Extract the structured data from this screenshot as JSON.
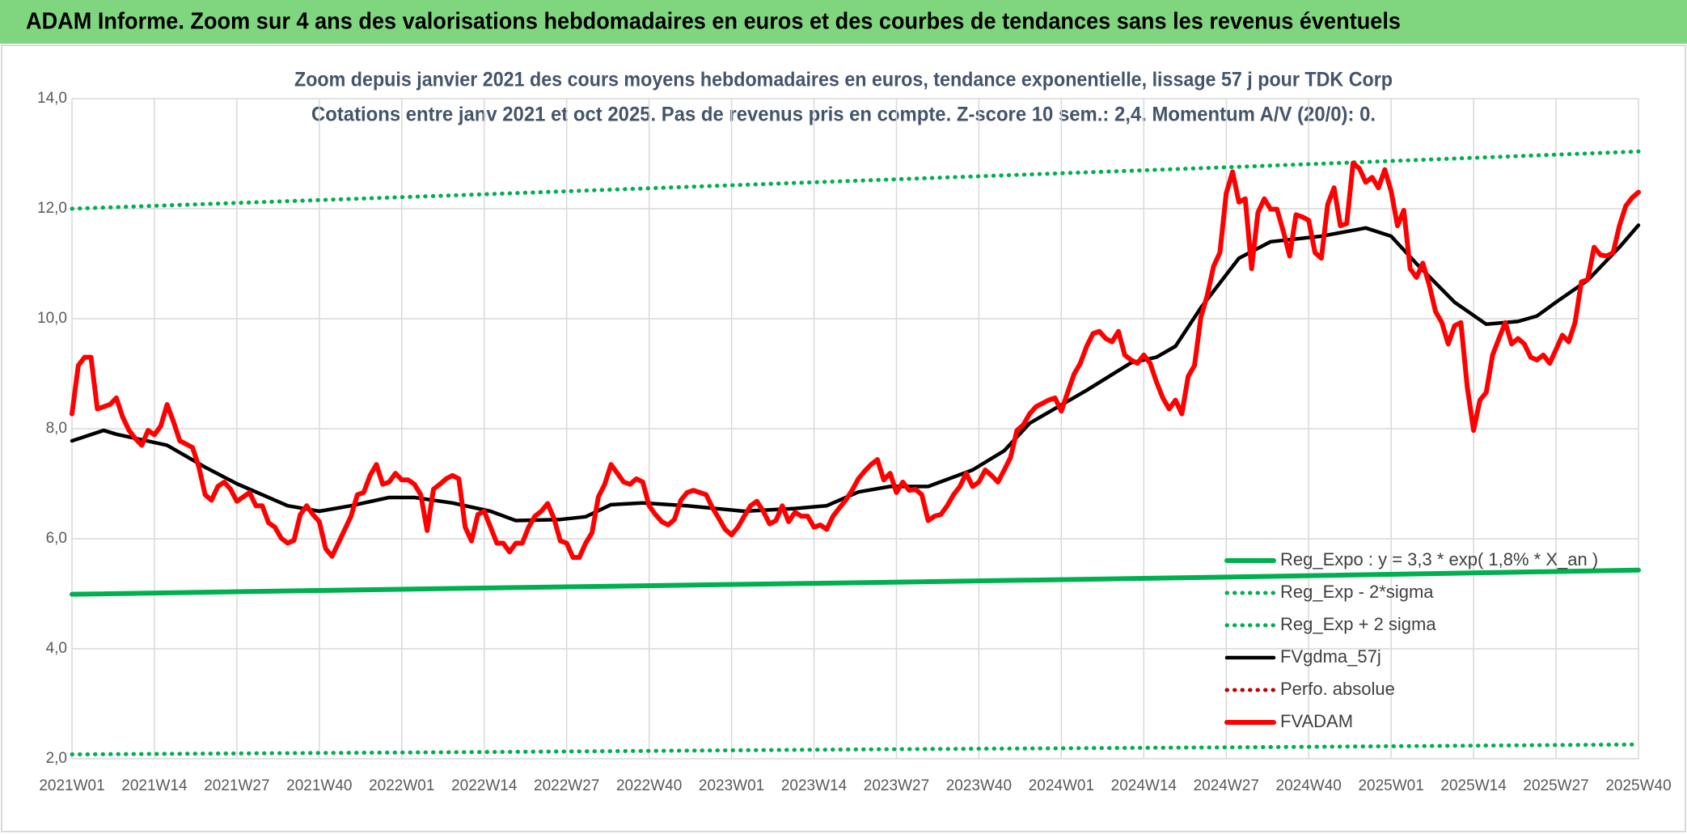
{
  "banner": "ADAM Informe. Zoom sur 4 ans des valorisations hebdomadaires en euros et des courbes de tendances sans les revenus éventuels",
  "chart_data": {
    "type": "line",
    "subtitles": [
      "Zoom depuis janvier 2021 des cours moyens hebdomadaires en euros, tendance exponentielle, lissage 57 j pour TDK Corp",
      "Cotations entre janv 2021 et oct 2025. Pas de revenus pris en compte. Z-score 10 sem.: 2,4. Momentum A/V (20/0): 0."
    ],
    "xlim": [
      0,
      247
    ],
    "xticks": [
      {
        "value": 0,
        "label": "2021W01"
      },
      {
        "value": 13,
        "label": "2021W14"
      },
      {
        "value": 26,
        "label": "2021W27"
      },
      {
        "value": 39,
        "label": "2021W40"
      },
      {
        "value": 52,
        "label": "2022W01"
      },
      {
        "value": 65,
        "label": "2022W14"
      },
      {
        "value": 78,
        "label": "2022W27"
      },
      {
        "value": 91,
        "label": "2022W40"
      },
      {
        "value": 104,
        "label": "2023W01"
      },
      {
        "value": 117,
        "label": "2023W14"
      },
      {
        "value": 130,
        "label": "2023W27"
      },
      {
        "value": 143,
        "label": "2023W40"
      },
      {
        "value": 156,
        "label": "2024W01"
      },
      {
        "value": 169,
        "label": "2024W14"
      },
      {
        "value": 182,
        "label": "2024W27"
      },
      {
        "value": 195,
        "label": "2024W40"
      },
      {
        "value": 208,
        "label": "2025W01"
      },
      {
        "value": 221,
        "label": "2025W14"
      },
      {
        "value": 234,
        "label": "2025W27"
      },
      {
        "value": 247,
        "label": "2025W40"
      }
    ],
    "ylim": [
      2,
      14
    ],
    "yticks": [
      {
        "value": 2,
        "label": "2,0"
      },
      {
        "value": 4,
        "label": "4,0"
      },
      {
        "value": 6,
        "label": "6,0"
      },
      {
        "value": 8,
        "label": "8,0"
      },
      {
        "value": 10,
        "label": "10,0"
      },
      {
        "value": 12,
        "label": "12,0"
      },
      {
        "value": 14,
        "label": "14,0"
      }
    ],
    "grid": true,
    "legend": "bottom-right",
    "series": [
      {
        "name": "Reg_Expo : y = 3,3 * exp( 1,8% *  X_an )",
        "color": "#00b050",
        "style": "solid",
        "x": [
          0,
          62,
          124,
          186,
          247
        ],
        "values": [
          4.99,
          5.1,
          5.2,
          5.31,
          5.43
        ]
      },
      {
        "name": "Reg_Exp - 2*sigma",
        "color": "#00b050",
        "style": "dotted",
        "x": [
          0,
          62,
          124,
          186,
          247
        ],
        "values": [
          2.08,
          2.12,
          2.17,
          2.21,
          2.26
        ]
      },
      {
        "name": "Reg_Exp + 2 sigma",
        "color": "#00b050",
        "style": "dotted",
        "x": [
          0,
          62,
          124,
          186,
          247
        ],
        "values": [
          12.0,
          12.25,
          12.51,
          12.77,
          13.04
        ]
      },
      {
        "name": "FVgdma_57j",
        "color": "#000000",
        "style": "solid",
        "x": [
          0,
          5,
          7,
          15,
          21,
          26,
          30,
          34,
          39,
          44,
          50,
          54,
          60,
          66,
          70,
          77,
          81,
          85,
          90,
          97,
          106,
          114,
          119,
          124,
          129,
          135,
          142,
          147,
          151,
          160,
          167,
          171,
          174,
          178,
          184,
          189,
          197,
          204,
          208,
          212,
          218,
          223,
          228,
          231,
          234,
          239,
          244,
          247
        ],
        "values": [
          7.78,
          7.97,
          7.9,
          7.7,
          7.3,
          7.0,
          6.8,
          6.6,
          6.5,
          6.6,
          6.75,
          6.75,
          6.65,
          6.5,
          6.33,
          6.35,
          6.4,
          6.62,
          6.65,
          6.6,
          6.5,
          6.55,
          6.6,
          6.85,
          6.95,
          6.95,
          7.25,
          7.6,
          8.1,
          8.7,
          9.2,
          9.3,
          9.5,
          10.2,
          11.1,
          11.4,
          11.5,
          11.65,
          11.5,
          11.0,
          10.3,
          9.9,
          9.95,
          10.05,
          10.3,
          10.7,
          11.3,
          11.7
        ]
      },
      {
        "name": "Perfo. absolue",
        "color": "#c00000",
        "style": "dotted",
        "x": [],
        "values": []
      },
      {
        "name": "FVADAM",
        "color": "#ff0000",
        "style": "solid",
        "x": [
          0,
          1,
          2,
          3,
          4,
          6,
          7,
          8,
          9,
          10,
          11,
          12,
          13,
          14,
          15,
          16,
          17,
          19,
          20,
          21,
          22,
          23,
          24,
          25,
          26,
          27,
          28,
          29,
          30,
          31,
          32,
          33,
          34,
          35,
          36,
          37,
          38,
          39,
          40,
          41,
          42,
          44,
          45,
          46,
          47,
          48,
          49,
          50,
          51,
          52,
          53,
          54,
          55,
          56,
          57,
          58,
          59,
          60,
          61,
          62,
          63,
          64,
          65,
          66,
          67,
          68,
          69,
          70,
          71,
          72,
          73,
          74,
          75,
          76,
          77,
          78,
          79,
          80,
          81,
          82,
          83,
          84,
          85,
          86,
          87,
          88,
          89,
          90,
          91,
          92,
          93,
          94,
          95,
          96,
          97,
          98,
          99,
          100,
          101,
          102,
          103,
          104,
          105,
          106,
          107,
          108,
          109,
          110,
          111,
          112,
          113,
          114,
          115,
          116,
          117,
          118,
          119,
          120,
          121,
          122,
          123,
          124,
          125,
          126,
          127,
          128,
          129,
          130,
          131,
          132,
          133,
          134,
          135,
          136,
          137,
          138,
          139,
          140,
          141,
          142,
          143,
          144,
          145,
          146,
          147,
          148,
          149,
          150,
          151,
          152,
          153,
          154,
          155,
          156,
          157,
          158,
          159,
          160,
          161,
          162,
          163,
          164,
          165,
          166,
          167,
          168,
          169,
          170,
          171,
          172,
          173,
          174,
          175,
          176,
          177,
          178,
          179,
          180,
          181,
          182,
          183,
          184,
          185,
          186,
          187,
          188,
          189,
          190,
          191,
          192,
          193,
          194,
          195,
          196,
          197,
          198,
          199,
          200,
          201,
          202,
          203,
          204,
          205,
          206,
          207,
          208,
          209,
          210,
          211,
          212,
          213,
          214,
          215,
          216,
          217,
          218,
          219,
          220,
          221,
          222,
          223,
          224,
          225,
          226,
          227,
          228,
          229,
          230,
          231,
          232,
          233,
          234,
          235,
          236,
          237,
          238,
          239,
          240,
          241,
          242,
          243,
          244,
          245,
          246,
          247
        ],
        "values": [
          8.27,
          9.15,
          9.3,
          9.3,
          8.36,
          8.44,
          8.56,
          8.21,
          7.97,
          7.82,
          7.7,
          7.97,
          7.89,
          8.05,
          8.44,
          8.13,
          7.78,
          7.66,
          7.31,
          6.8,
          6.7,
          6.95,
          7.03,
          6.9,
          6.68,
          6.76,
          6.84,
          6.6,
          6.6,
          6.29,
          6.21,
          6.01,
          5.92,
          5.97,
          6.44,
          6.6,
          6.44,
          6.31,
          5.82,
          5.68,
          5.92,
          6.41,
          6.8,
          6.84,
          7.15,
          7.35,
          6.99,
          7.03,
          7.19,
          7.07,
          7.07,
          6.99,
          6.8,
          6.15,
          6.9,
          6.99,
          7.09,
          7.15,
          7.09,
          6.21,
          5.96,
          6.44,
          6.5,
          6.21,
          5.92,
          5.92,
          5.76,
          5.92,
          5.92,
          6.21,
          6.41,
          6.5,
          6.64,
          6.37,
          5.96,
          5.92,
          5.66,
          5.66,
          5.92,
          6.11,
          6.76,
          6.99,
          7.35,
          7.19,
          7.03,
          6.99,
          7.09,
          7.03,
          6.6,
          6.44,
          6.31,
          6.25,
          6.35,
          6.7,
          6.84,
          6.88,
          6.84,
          6.8,
          6.56,
          6.37,
          6.17,
          6.07,
          6.21,
          6.41,
          6.6,
          6.68,
          6.5,
          6.27,
          6.33,
          6.6,
          6.31,
          6.48,
          6.41,
          6.41,
          6.21,
          6.25,
          6.17,
          6.41,
          6.56,
          6.7,
          6.88,
          7.09,
          7.23,
          7.35,
          7.44,
          7.07,
          7.19,
          6.84,
          7.03,
          6.88,
          6.9,
          6.8,
          6.33,
          6.41,
          6.44,
          6.6,
          6.8,
          6.95,
          7.19,
          6.95,
          7.03,
          7.25,
          7.15,
          7.03,
          7.25,
          7.48,
          7.97,
          8.07,
          8.27,
          8.4,
          8.46,
          8.52,
          8.56,
          8.32,
          8.66,
          8.99,
          9.19,
          9.5,
          9.73,
          9.77,
          9.64,
          9.58,
          9.77,
          9.34,
          9.25,
          9.19,
          9.34,
          9.19,
          8.85,
          8.56,
          8.36,
          8.52,
          8.27,
          8.95,
          9.15,
          10.03,
          10.42,
          10.95,
          11.2,
          12.28,
          12.67,
          12.12,
          12.18,
          10.91,
          11.93,
          12.18,
          11.99,
          11.99,
          11.59,
          11.14,
          11.89,
          11.85,
          11.79,
          11.2,
          11.1,
          12.08,
          12.38,
          11.69,
          11.73,
          12.83,
          12.73,
          12.48,
          12.57,
          12.38,
          12.71,
          12.32,
          11.69,
          11.97,
          10.91,
          10.75,
          11.01,
          10.62,
          10.13,
          9.93,
          9.54,
          9.87,
          9.93,
          8.76,
          7.97,
          8.52,
          8.66,
          9.34,
          9.64,
          9.93,
          9.54,
          9.64,
          9.54,
          9.3,
          9.25,
          9.34,
          9.19,
          9.44,
          9.7,
          9.58,
          9.93,
          10.67,
          10.71,
          11.3,
          11.16,
          11.14,
          11.2,
          11.69,
          12.05,
          12.2,
          12.3
        ]
      }
    ]
  }
}
